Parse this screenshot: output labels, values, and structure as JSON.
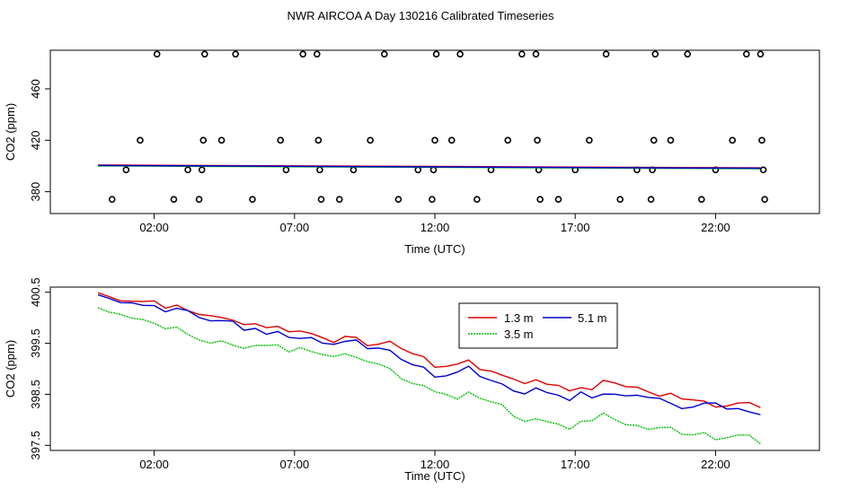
{
  "title": "NWR AIRCOA A  Day 130216  Calibrated Timeseries",
  "colors": {
    "red": "#e00000",
    "blue": "#0000d0",
    "green": "#00c000",
    "axis": "#000000"
  },
  "chart_data": [
    {
      "type": "scatter",
      "xlabel": "Time (UTC)",
      "ylabel": "CO2 (ppm)",
      "x_ticks": [
        "02:00",
        "07:00",
        "12:00",
        "17:00",
        "22:00"
      ],
      "x_tick_hours": [
        2,
        7,
        12,
        17,
        22
      ],
      "xlim": [
        -1.7,
        25.7
      ],
      "y_ticks": [
        "380",
        "420",
        "460"
      ],
      "y_tick_values": [
        380,
        420,
        460
      ],
      "ylim": [
        363,
        490
      ],
      "grid": false,
      "points": [
        [
          0.5,
          374
        ],
        [
          1.0,
          397
        ],
        [
          1.5,
          420
        ],
        [
          2.1,
          487
        ],
        [
          2.7,
          374
        ],
        [
          3.2,
          397
        ],
        [
          3.6,
          374
        ],
        [
          3.7,
          397
        ],
        [
          3.75,
          420
        ],
        [
          3.8,
          487
        ],
        [
          4.4,
          420
        ],
        [
          4.9,
          487
        ],
        [
          5.5,
          374
        ],
        [
          6.5,
          420
        ],
        [
          6.7,
          397
        ],
        [
          7.3,
          487
        ],
        [
          7.8,
          487
        ],
        [
          7.85,
          420
        ],
        [
          7.9,
          397
        ],
        [
          7.95,
          374
        ],
        [
          8.6,
          374
        ],
        [
          9.1,
          397
        ],
        [
          9.7,
          420
        ],
        [
          10.2,
          487
        ],
        [
          10.7,
          374
        ],
        [
          11.4,
          397
        ],
        [
          11.9,
          374
        ],
        [
          11.95,
          397
        ],
        [
          12.0,
          420
        ],
        [
          12.05,
          487
        ],
        [
          12.6,
          420
        ],
        [
          12.9,
          487
        ],
        [
          13.5,
          374
        ],
        [
          14.0,
          397
        ],
        [
          14.6,
          420
        ],
        [
          15.1,
          487
        ],
        [
          15.6,
          487
        ],
        [
          15.65,
          420
        ],
        [
          15.7,
          397
        ],
        [
          15.75,
          374
        ],
        [
          16.4,
          374
        ],
        [
          17.0,
          397
        ],
        [
          17.5,
          420
        ],
        [
          18.1,
          487
        ],
        [
          18.6,
          374
        ],
        [
          19.2,
          397
        ],
        [
          19.7,
          374
        ],
        [
          19.75,
          397
        ],
        [
          19.8,
          420
        ],
        [
          19.85,
          487
        ],
        [
          20.4,
          420
        ],
        [
          21.0,
          487
        ],
        [
          21.5,
          374
        ],
        [
          22.0,
          397
        ],
        [
          22.6,
          420
        ],
        [
          23.1,
          487
        ],
        [
          23.6,
          487
        ],
        [
          23.65,
          420
        ],
        [
          23.7,
          397
        ],
        [
          23.75,
          374
        ]
      ],
      "line_values": {
        "start": 400.4,
        "end": 398.2,
        "start_hour": 0.0,
        "end_hour": 23.6
      }
    },
    {
      "type": "line",
      "xlabel": "Time (UTC)",
      "ylabel": "CO2 (ppm)",
      "x_ticks": [
        "02:00",
        "07:00",
        "12:00",
        "17:00",
        "22:00"
      ],
      "x_tick_hours": [
        2,
        7,
        12,
        17,
        22
      ],
      "xlim": [
        -1.7,
        25.7
      ],
      "y_ticks": [
        "397.5",
        "398.5",
        "399.5",
        "400.5"
      ],
      "y_tick_values": [
        397.5,
        398.5,
        399.5,
        400.5
      ],
      "ylim": [
        397.4,
        400.6
      ],
      "grid": false,
      "legend": {
        "position": "top-center",
        "entries": [
          "1.3 m",
          "5.1 m",
          "3.5 m"
        ]
      },
      "hours_step": 0.4,
      "series": [
        {
          "name": "1.3 m",
          "color": "#e00000",
          "anchor_hours": [
            0,
            2,
            4,
            6,
            8,
            10,
            11,
            12,
            13,
            14,
            15,
            16,
            17,
            18,
            19,
            20,
            21,
            22,
            23,
            23.6
          ],
          "anchor_values": [
            400.45,
            400.3,
            400.05,
            399.8,
            399.65,
            399.5,
            399.4,
            399.05,
            399.15,
            398.95,
            398.75,
            398.75,
            398.55,
            398.75,
            398.65,
            398.45,
            398.5,
            398.35,
            398.3,
            398.25
          ]
        },
        {
          "name": "5.1 m",
          "color": "#0000d0",
          "anchor_hours": [
            0,
            2,
            4,
            6,
            8,
            10,
            11,
            12,
            13,
            14,
            15,
            16,
            17,
            18,
            19,
            20,
            21,
            22,
            23,
            23.6
          ],
          "anchor_values": [
            400.45,
            400.25,
            400.0,
            399.75,
            399.55,
            399.4,
            399.2,
            398.85,
            399.05,
            398.8,
            398.55,
            398.55,
            398.45,
            398.45,
            398.5,
            398.35,
            398.25,
            398.35,
            398.15,
            398.05
          ]
        },
        {
          "name": "3.5 m",
          "color": "#00c000",
          "anchor_hours": [
            0,
            2,
            4,
            6,
            8,
            10,
            11,
            12,
            13,
            14,
            15,
            16,
            17,
            18,
            19,
            20,
            21,
            22,
            23,
            23.6
          ],
          "anchor_values": [
            400.2,
            399.9,
            399.5,
            399.45,
            399.35,
            399.1,
            398.8,
            398.55,
            398.45,
            398.4,
            398.05,
            397.95,
            397.9,
            398.1,
            397.9,
            397.85,
            397.75,
            397.7,
            397.75,
            397.55
          ]
        }
      ]
    }
  ]
}
